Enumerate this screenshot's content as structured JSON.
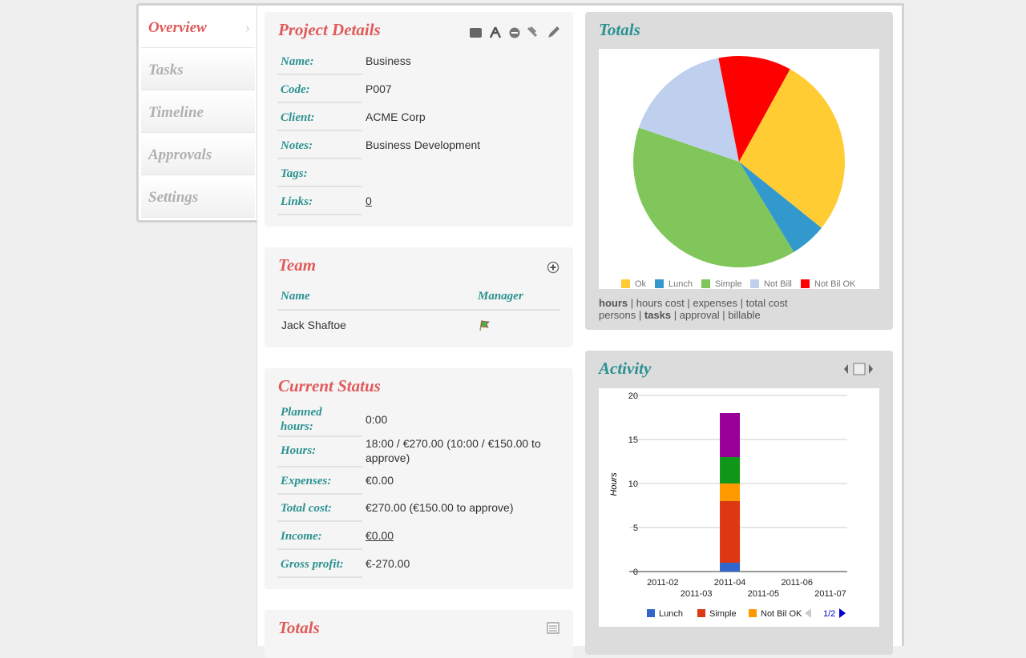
{
  "nav": {
    "items": [
      "Overview",
      "Tasks",
      "Timeline",
      "Approvals",
      "Settings"
    ],
    "active": 0
  },
  "project_details": {
    "title": "Project Details",
    "rows": [
      {
        "label": "Name:",
        "value": "Business"
      },
      {
        "label": "Code:",
        "value": "P007"
      },
      {
        "label": "Client:",
        "value": "ACME Corp"
      },
      {
        "label": "Notes:",
        "value": "Business Development"
      },
      {
        "label": "Tags:"
      },
      {
        "label": "Links:",
        "value": "0",
        "link": true
      }
    ]
  },
  "team": {
    "title": "Team",
    "columns": [
      "Name",
      "Manager"
    ],
    "rows": [
      {
        "name": "Jack Shaftoe",
        "manager": true
      }
    ]
  },
  "current_status": {
    "title": "Current Status",
    "rows": [
      {
        "label": "Planned hours:",
        "value": "0:00"
      },
      {
        "label": "Hours:",
        "value": "18:00 / €270.00 (10:00 / €150.00 to approve)"
      },
      {
        "label": "Expenses:",
        "value": "€0.00"
      },
      {
        "label": "Total cost:",
        "value": "€270.00 (€150.00 to approve)"
      },
      {
        "label": "Income:",
        "value": "€0.00",
        "link": true
      },
      {
        "label": "Gross profit:",
        "value": "€-270.00"
      }
    ]
  },
  "totals_summary": {
    "title": "Totals"
  },
  "chart_data": [
    {
      "type": "pie",
      "title": "Totals",
      "categories": [
        "Ok",
        "Lunch",
        "Simple",
        "Not Bill",
        "Not Bil OK"
      ],
      "values": [
        5,
        1,
        7,
        3,
        2
      ],
      "colors": [
        "#ffcc33",
        "#3399cc",
        "#80c65a",
        "#bfcfee",
        "#ff0000"
      ],
      "links": [
        [
          "hours",
          "hours cost",
          "expenses",
          "total cost"
        ],
        [
          "persons",
          "tasks",
          "approval",
          "billable"
        ]
      ],
      "selected": [
        "hours",
        "tasks"
      ]
    },
    {
      "type": "bar",
      "stacked": true,
      "title": "Activity",
      "y_label": "Hours",
      "categories": [
        "2011-02",
        "2011-03",
        "2011-04",
        "2011-05",
        "2011-06",
        "2011-07"
      ],
      "series": [
        {
          "name": "Lunch",
          "color": "#3366cc",
          "values": [
            0,
            0,
            1,
            0,
            0,
            0
          ]
        },
        {
          "name": "Simple",
          "color": "#dc3912",
          "values": [
            0,
            0,
            7,
            0,
            0,
            0
          ]
        },
        {
          "name": "Not Bil OK",
          "color": "#ff9900",
          "values": [
            0,
            0,
            2,
            0,
            0,
            0
          ]
        },
        {
          "color": "#109618",
          "values": [
            0,
            0,
            3,
            0,
            0,
            0
          ]
        },
        {
          "color": "#990099",
          "values": [
            0,
            0,
            5,
            0,
            0,
            0
          ]
        }
      ],
      "legend_count": 3,
      "pager": "1/2",
      "ylim": [
        0,
        20
      ],
      "yticks": [
        0,
        5,
        10,
        15,
        20
      ],
      "grid": true
    }
  ]
}
